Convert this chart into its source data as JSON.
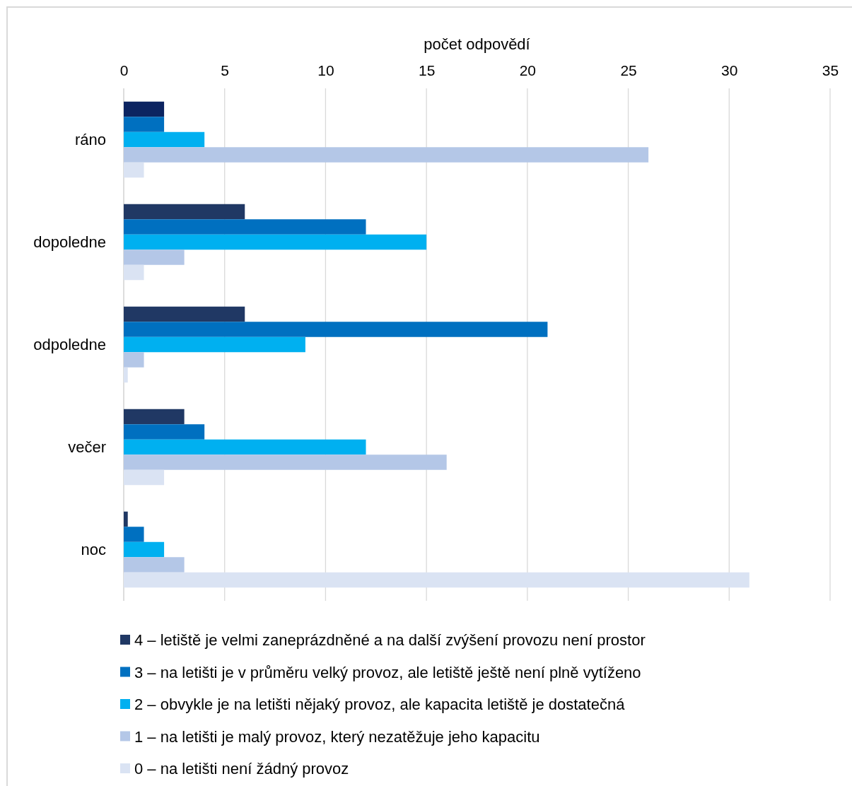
{
  "chart_data": {
    "type": "bar",
    "orientation": "horizontal",
    "xlabel": "počet odpovědí",
    "categories": [
      "ráno",
      "dopoledne",
      "odpoledne",
      "večer",
      "noc"
    ],
    "series": [
      {
        "name": "4 – letiště je velmi zaneprázdněné a na další zvýšení provozu není prostor",
        "color": "#203864",
        "colors": [
          "#0c2461",
          "#203864",
          "#203864",
          "#203864",
          "#203864"
        ],
        "values": [
          2,
          6,
          6,
          3,
          0.2
        ]
      },
      {
        "name": "3 – na letišti je v průměru velký provoz, ale letiště ještě není plně vytíženo",
        "color": "#0070c0",
        "values": [
          2,
          12,
          21,
          4,
          1
        ]
      },
      {
        "name": "2 – obvykle je na letišti nějaký provoz, ale kapacita letiště je dostatečná",
        "color": "#00b0f0",
        "values": [
          4,
          15,
          9,
          12,
          2
        ]
      },
      {
        "name": "1 – na letišti je malý provoz, který nezatěžuje jeho kapacitu",
        "color": "#b4c7e7",
        "values": [
          26,
          3,
          1,
          16,
          3
        ]
      },
      {
        "name": "0 – na letišti není žádný provoz",
        "color": "#dae3f3",
        "values": [
          1,
          1,
          0.2,
          2,
          31
        ]
      }
    ],
    "xlim": [
      0,
      35
    ],
    "xticks": [
      0,
      5,
      10,
      15,
      20,
      25,
      30,
      35
    ],
    "grid": "x",
    "legend": "bottom"
  }
}
